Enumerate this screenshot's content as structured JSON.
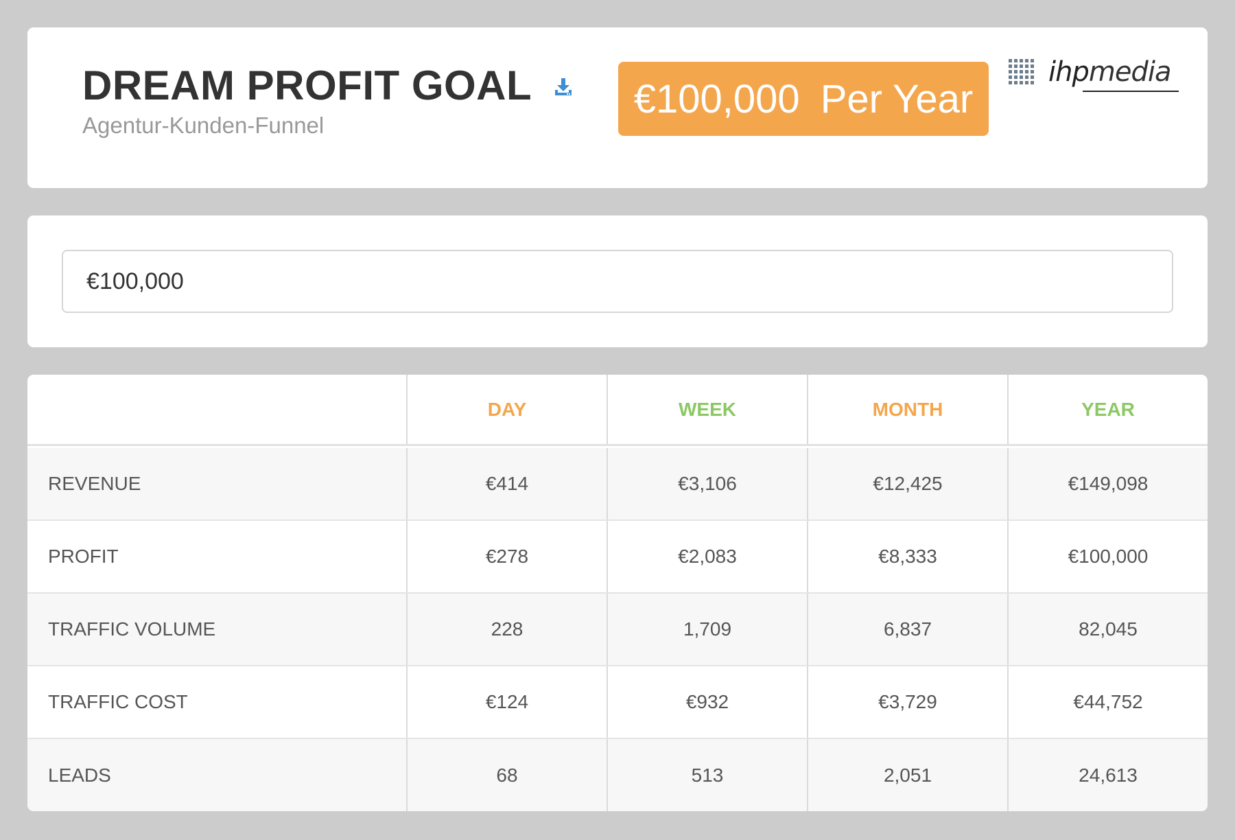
{
  "header": {
    "title": "DREAM PROFIT GOAL",
    "subtitle": "Agentur-Kunden-Funnel",
    "download_icon": "download-icon",
    "goal_amount": "€100,000",
    "goal_period": "Per Year",
    "logo_text_ihp": "ihp",
    "logo_text_media": "media",
    "accent_color": "#f4a64d"
  },
  "input": {
    "value": "€100,000"
  },
  "table": {
    "columns": [
      "DAY",
      "WEEK",
      "MONTH",
      "YEAR"
    ],
    "column_colors": [
      "#f4a64d",
      "#8cc863",
      "#f4a64d",
      "#8cc863"
    ],
    "rows": [
      {
        "label": "REVENUE",
        "values": [
          "€414",
          "€3,106",
          "€12,425",
          "€149,098"
        ]
      },
      {
        "label": "PROFIT",
        "values": [
          "€278",
          "€2,083",
          "€8,333",
          "€100,000"
        ]
      },
      {
        "label": "TRAFFIC VOLUME",
        "values": [
          "228",
          "1,709",
          "6,837",
          "82,045"
        ]
      },
      {
        "label": "TRAFFIC COST",
        "values": [
          "€124",
          "€932",
          "€3,729",
          "€44,752"
        ]
      },
      {
        "label": "LEADS",
        "values": [
          "68",
          "513",
          "2,051",
          "24,613"
        ]
      }
    ]
  }
}
